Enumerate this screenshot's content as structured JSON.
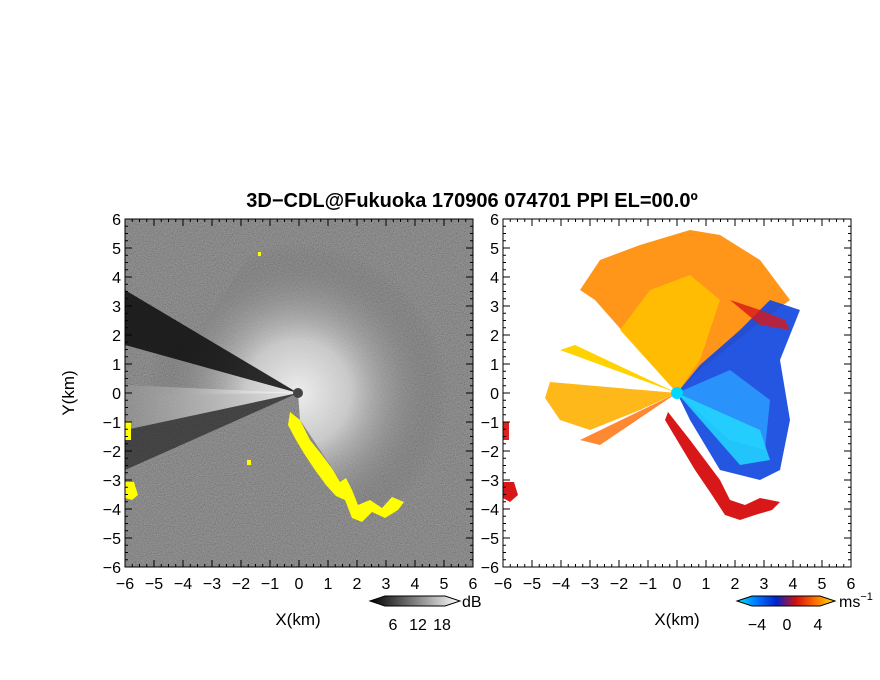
{
  "title": "3D−CDL@Fukuoka 170906 074701 PPI EL=00.0º",
  "chart_data": [
    {
      "type": "heatmap",
      "panel": "reflectivity",
      "xlabel": "X(km)",
      "ylabel": "Y(km)",
      "xlim": [
        -6,
        6
      ],
      "ylim": [
        -6,
        6
      ],
      "x_ticks": [
        "−6",
        "−5",
        "−4",
        "−3",
        "−2",
        "−1",
        "0",
        "1",
        "2",
        "3",
        "4",
        "5",
        "6"
      ],
      "y_ticks": [
        "6",
        "5",
        "4",
        "3",
        "2",
        "1",
        "0",
        "−1",
        "−2",
        "−3",
        "−4",
        "−5",
        "−6"
      ],
      "background": "grey noise field, bright radial echo centered at origin",
      "highlight_color": "#ffff00",
      "colorbar": {
        "unit": "dB",
        "ticks": [
          "6",
          "12",
          "18"
        ],
        "colors": [
          "#000000",
          "#ffffff"
        ]
      }
    },
    {
      "type": "heatmap",
      "panel": "doppler_velocity",
      "xlabel": "X(km)",
      "xlim": [
        -6,
        6
      ],
      "ylim": [
        -6,
        6
      ],
      "x_ticks": [
        "−6",
        "−5",
        "−4",
        "−3",
        "−2",
        "−1",
        "0",
        "1",
        "2",
        "3",
        "4",
        "5",
        "6"
      ],
      "y_ticks": [
        "6",
        "5",
        "4",
        "3",
        "2",
        "1",
        "0",
        "−1",
        "−2",
        "−3",
        "−4",
        "−5",
        "−6"
      ],
      "colorbar": {
        "unit": "ms",
        "unit_exp": "−1",
        "ticks": [
          "−4",
          "0",
          "4"
        ],
        "colors": [
          "#00e5ff",
          "#0077ff",
          "#0022cc",
          "#d01010",
          "#ff7000",
          "#ffe000"
        ]
      }
    }
  ]
}
